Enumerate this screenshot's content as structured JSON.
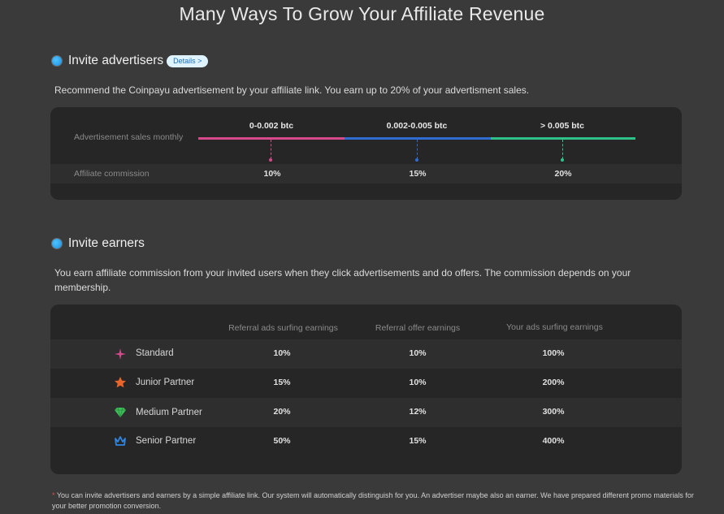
{
  "page": {
    "title": "Many Ways To Grow Your Affiliate Revenue"
  },
  "advertisers": {
    "heading": "Invite advertisers",
    "details_label": "Details >",
    "description": "Recommend the Coinpayu advertisement by your affiliate link. You earn up to 20% of your advertisment sales.",
    "row_labels": {
      "sales": "Advertisement sales monthly",
      "commission": "Affiliate commission"
    },
    "tiers": [
      {
        "range": "0-0.002 btc",
        "commission": "10%",
        "color": "#d64a8c"
      },
      {
        "range": "0.002-0.005 btc",
        "commission": "15%",
        "color": "#2f6bd1"
      },
      {
        "range": "> 0.005 btc",
        "commission": "20%",
        "color": "#2ec28a"
      }
    ]
  },
  "earners": {
    "heading": "Invite earners",
    "description": "You earn affiliate commission from your invited users when they click advertisements and do offers. The commission depends on your membership.",
    "columns": [
      "Referral ads surfing earnings",
      "Referral offer earnings",
      "Your ads surfing earnings"
    ],
    "rows": [
      {
        "name": "Standard",
        "icon": "sparkle-icon",
        "icon_color": "#d64a8c",
        "values": [
          "10%",
          "10%",
          "100%"
        ]
      },
      {
        "name": "Junior Partner",
        "icon": "star-icon",
        "icon_color": "#e8642a",
        "values": [
          "15%",
          "10%",
          "200%"
        ]
      },
      {
        "name": "Medium Partner",
        "icon": "diamond-icon",
        "icon_color": "#3fbf5a",
        "values": [
          "20%",
          "12%",
          "300%"
        ]
      },
      {
        "name": "Senior Partner",
        "icon": "crown-icon",
        "icon_color": "#2f86e0",
        "values": [
          "50%",
          "15%",
          "400%"
        ]
      }
    ]
  },
  "footnote": {
    "marker": "*",
    "text": "You can invite advertisers and earners by a simple affiliate link. Our system will automatically distinguish for you. An advertiser maybe also an earner. We have prepared different promo materials for your better promotion conversion."
  }
}
